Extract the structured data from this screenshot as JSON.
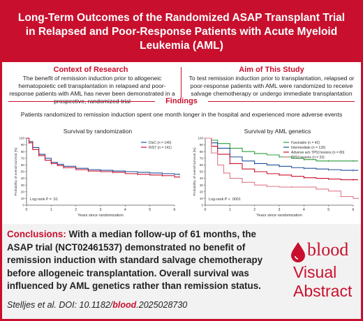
{
  "header": {
    "title": "Long-Term Outcomes of the Randomized ASAP Transplant Trial in Relapsed and Poor-Response Patients with Acute Myeloid Leukemia (AML)"
  },
  "context": {
    "title": "Context of Research",
    "text": "The benefit of remission induction prior to allogeneic hematopoietic cell transplantation in relapsed and poor-response patients with AML has never been demonstrated in a prospective, randomized trial"
  },
  "aim": {
    "title": "Aim of This Study",
    "text": "To test remission induction prior to transplantation, relapsed or poor-response patients with AML were randomized to receive salvage chemotherapy or undergo immediate transplantation"
  },
  "findings": {
    "title": "Findings",
    "subtitle": "Patients randomized to remission induction spent one month longer in the hospital and experienced more adverse events"
  },
  "conclusion": {
    "label": "Conclusions:",
    "text": " With a median follow-up of 61 months, the ASAP trial (NCT02461537) demonstrated no benefit of remission induction with standard salvage chemotherapy before allogeneic transplantation. Overall survival was influenced by AML genetics rather than remission status."
  },
  "citation": {
    "prefix": "Stelljes et al. DOI: 10.1182/",
    "journal": "blood",
    "suffix": ".2025028730"
  },
  "brand": {
    "logo_text": "blood",
    "line1": "Visual",
    "line2": "Abstract",
    "accent": "#c8102e"
  },
  "chart_data": [
    {
      "type": "line",
      "title": "Survival by randomization",
      "xlabel": "Years since randomization",
      "ylabel": "Probability of overall survival [%]",
      "xlim": [
        0,
        6
      ],
      "ylim": [
        0,
        100
      ],
      "xticks": [
        0,
        1,
        2,
        3,
        4,
        5,
        6
      ],
      "yticks": [
        0,
        10,
        20,
        30,
        40,
        50,
        60,
        70,
        80,
        90,
        100
      ],
      "annotation": "Log-rank P = .51",
      "legend_position": "top-right",
      "series": [
        {
          "name": "DisC (n = 140)",
          "color": "#1f4e9c",
          "x": [
            0,
            0.1,
            0.25,
            0.5,
            0.75,
            1,
            1.25,
            1.5,
            2,
            2.5,
            3,
            3.5,
            4,
            4.5,
            5,
            5.5,
            6,
            6.2
          ],
          "y": [
            100,
            95,
            86,
            76,
            70,
            64,
            61,
            58,
            55,
            53,
            52,
            51,
            50,
            49,
            48,
            47,
            46,
            46
          ]
        },
        {
          "name": "RIST (n = 141)",
          "color": "#c8102e",
          "x": [
            0,
            0.1,
            0.25,
            0.5,
            0.75,
            1,
            1.25,
            1.5,
            2,
            2.5,
            3,
            3.5,
            4,
            4.5,
            5,
            5.5,
            6,
            6.2
          ],
          "y": [
            100,
            93,
            83,
            74,
            67,
            62,
            59,
            56,
            53,
            51,
            50,
            49,
            47,
            46,
            45,
            44,
            42,
            42
          ]
        }
      ]
    },
    {
      "type": "line",
      "title": "Survival by AML genetics",
      "xlabel": "Years since randomization",
      "ylabel": "Probability of overall survival [%]",
      "xlim": [
        0,
        6
      ],
      "ylim": [
        0,
        100
      ],
      "xticks": [
        0,
        1,
        2,
        3,
        4,
        5,
        6
      ],
      "yticks": [
        0,
        10,
        20,
        30,
        40,
        50,
        60,
        70,
        80,
        90,
        100
      ],
      "annotation": "Log-rank P < .0001",
      "legend_position": "top-right",
      "series": [
        {
          "name": "Favorable (n = 42)",
          "color": "#2e9e3e",
          "x": [
            0,
            0.25,
            0.5,
            1,
            1.5,
            2,
            2.5,
            3,
            3.5,
            4,
            4.5,
            5,
            5.5,
            6,
            6.2
          ],
          "y": [
            100,
            97,
            92,
            85,
            80,
            77,
            75,
            72,
            70,
            68,
            66,
            66,
            66,
            66,
            66
          ]
        },
        {
          "name": "Intermediate (n = 126)",
          "color": "#1f4e9c",
          "x": [
            0,
            0.25,
            0.5,
            1,
            1.5,
            2,
            2.5,
            3,
            3.5,
            4,
            4.5,
            5,
            5.5,
            6,
            6.2
          ],
          "y": [
            100,
            93,
            85,
            72,
            66,
            62,
            60,
            58,
            56,
            55,
            54,
            53,
            52,
            52,
            52
          ]
        },
        {
          "name": "Adverse w/o TP53 lesions (n = 80)",
          "color": "#c8102e",
          "x": [
            0,
            0.25,
            0.5,
            1,
            1.5,
            2,
            2.5,
            3,
            3.5,
            4,
            4.5,
            5,
            5.5,
            6,
            6.2
          ],
          "y": [
            100,
            88,
            76,
            62,
            54,
            50,
            47,
            45,
            43,
            41,
            40,
            39,
            38,
            38,
            38
          ]
        },
        {
          "name": "TP53 lesions (n = 33)",
          "color": "#e07a8a",
          "x": [
            0,
            0.25,
            0.5,
            0.75,
            1,
            1.5,
            2,
            2.5,
            3,
            3.5,
            4,
            4.5,
            5,
            5.5,
            6,
            6.2
          ],
          "y": [
            100,
            78,
            60,
            48,
            40,
            34,
            30,
            28,
            27,
            27,
            27,
            24,
            21,
            13,
            10,
            10
          ]
        }
      ]
    }
  ]
}
